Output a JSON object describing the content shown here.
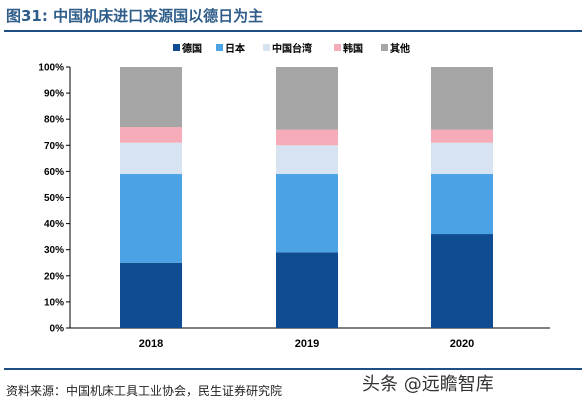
{
  "figure": {
    "title": "图31: 中国机床进口来源国以德日为主",
    "source": "资料来源：中国机床工具工业协会，民生证券研究院",
    "watermark": "头条 @远瞻智库"
  },
  "chart_data": {
    "type": "bar",
    "stacked": true,
    "categories": [
      "2018",
      "2019",
      "2020"
    ],
    "ylim": [
      0,
      100
    ],
    "yticks": [
      "0%",
      "10%",
      "20%",
      "30%",
      "40%",
      "50%",
      "60%",
      "70%",
      "80%",
      "90%",
      "100%"
    ],
    "legend_position": "top-center",
    "grid": false,
    "series": [
      {
        "name": "德国",
        "color": "#0f4c92",
        "values": [
          25,
          29,
          36
        ]
      },
      {
        "name": "日本",
        "color": "#4ba3e6",
        "values": [
          34,
          30,
          23
        ]
      },
      {
        "name": "中国台湾",
        "color": "#d7e3f1",
        "values": [
          12,
          11,
          12
        ]
      },
      {
        "name": "韩国",
        "color": "#f6abb8",
        "values": [
          6,
          6,
          5
        ]
      },
      {
        "name": "其他",
        "color": "#a6a6a6",
        "values": [
          23,
          24,
          24
        ]
      }
    ]
  }
}
